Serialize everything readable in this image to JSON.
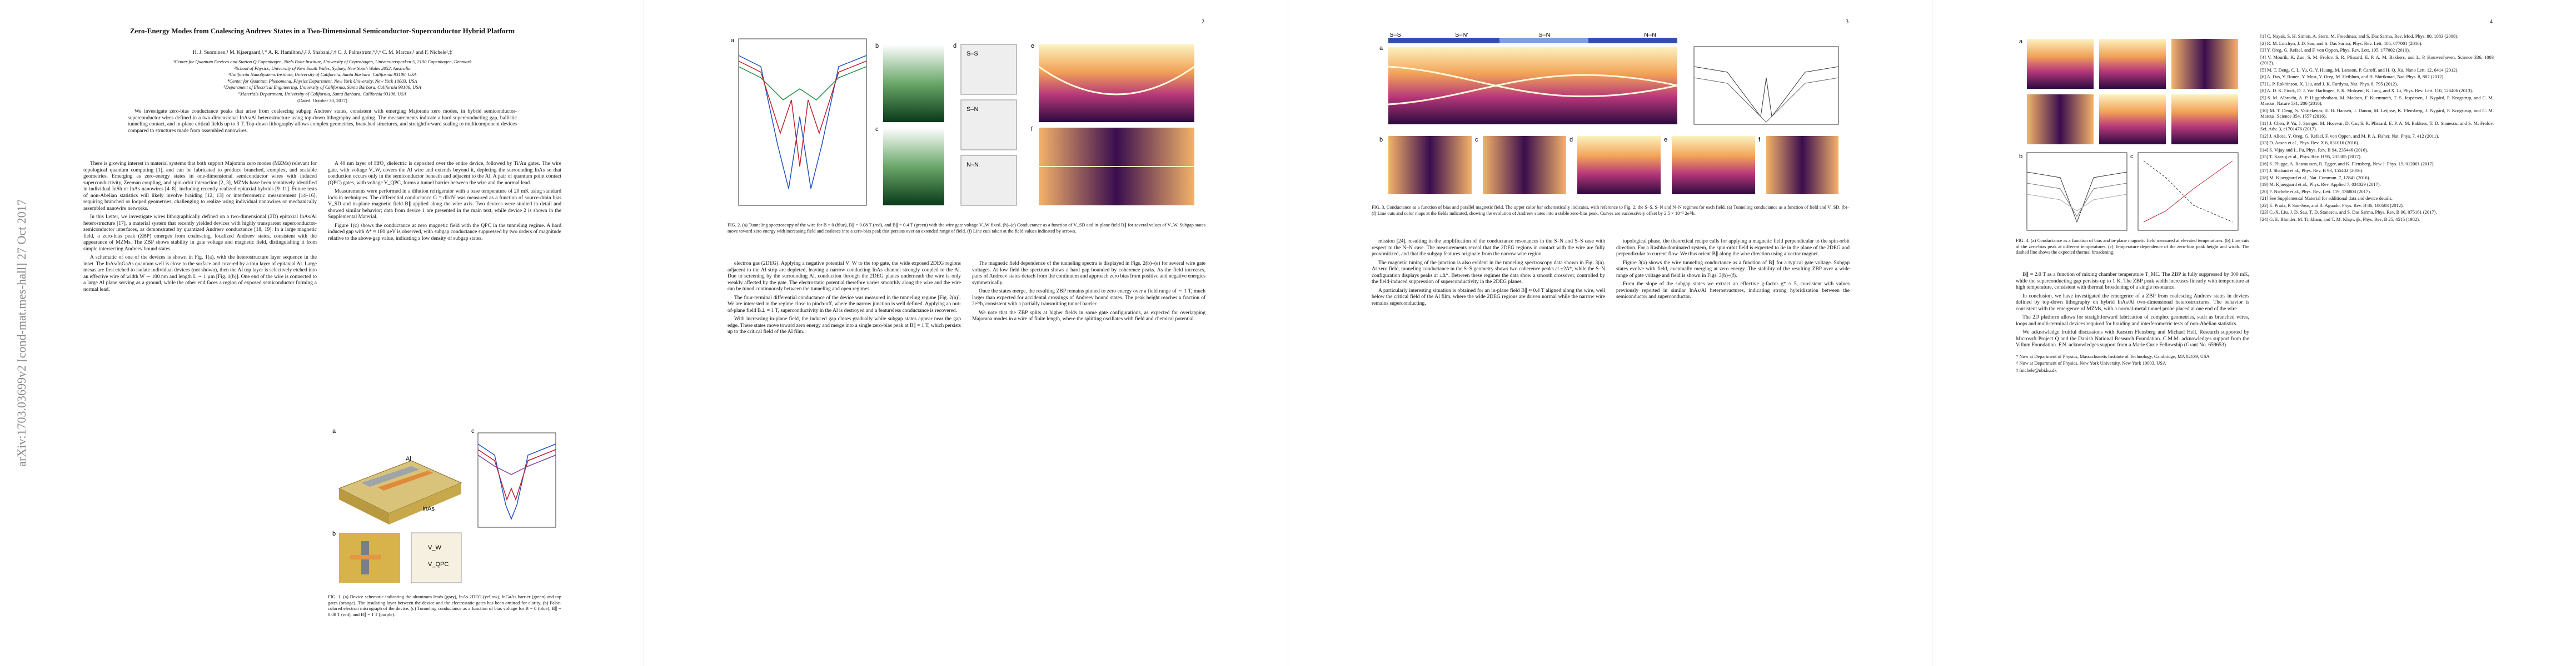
{
  "arxiv_id": "arXiv:1703.03699v2  [cond-mat.mes-hall]  27 Oct 2017",
  "page1": {
    "title": "Zero-Energy Modes from Coalescing Andreev States in a Two-Dimensional Semiconductor-Superconductor Hybrid Platform",
    "authors": "H. J. Suominen,¹ M. Kjaergaard,¹,* A. R. Hamilton,¹,² J. Shabani,³,† C. J. Palmstrøm,⁴,⁵,⁶ C. M. Marcus,¹ and F. Nichele¹,‡",
    "affiliations": [
      "¹Center for Quantum Devices and Station Q Copenhagen, Niels Bohr Institute, University of Copenhagen, Universitetsparken 5, 2100 Copenhagen, Denmark",
      "²School of Physics, University of New South Wales, Sydney, New South Wales 2052, Australia",
      "³California NanoSystems Institute, University of California, Santa Barbara, California 93106, USA",
      "⁴Center for Quantum Phenomena, Physics Department, New York University, New York 10003, USA",
      "⁵Department of Electrical Engineering, University of California, Santa Barbara, California 93106, USA",
      "⁶Materials Department, University of California, Santa Barbara, California 93106, USA"
    ],
    "date": "(Dated: October 30, 2017)",
    "abstract": "We investigate zero-bias conductance peaks that arise from coalescing subgap Andreev states, consistent with emerging Majorana zero modes, in hybrid semiconductor-superconductor wires defined in a two-dimensional InAs/Al heterostructure using top-down lithography and gating. The measurements indicate a hard superconducting gap, ballistic tunneling contact, and in-plane critical fields up to 3 T. Top-down lithography allows complex geometries, branched structures, and straightforward scaling to multicomponent devices compared to structures made from assembled nanowires.",
    "left": [
      "There is growing interest in material systems that both support Majorana zero modes (MZMs) relevant for topological quantum computing [1], and can be fabricated to produce branched, complex, and scalable geometries. Emerging as zero-energy states in one-dimensional semiconductor wires with induced superconductivity, Zeeman coupling, and spin-orbit interaction [2, 3], MZMs have been tentatively identified in individual InSb or InAs nanowires [4–8], including recently realized epitaxial hybrids [9–11]. Future tests of non-Abelian statistics will likely involve braiding [12, 13] or interferometric measurement [14–16], requiring branched or looped geometries, challenging to realize using individual nanowires or mechanically assembled nanowire networks.",
      "In this Letter, we investigate wires lithographically defined on a two-dimensional (2D) epitaxial InAs/Al heterostructure [17], a material system that recently yielded devices with highly transparent superconductor-semiconductor interfaces, as demonstrated by quantized Andreev conductance [18, 19]. In a large magnetic field, a zero-bias peak (ZBP) emerges from coalescing, localized Andreev states, consistent with the appearance of MZMs. The ZBP shows stability in gate voltage and magnetic field, distinguishing it from simple intersecting Andreev bound states.",
      "A schematic of one of the devices is shown in Fig. 1(a), with the heterostructure layer sequence in the inset. The InAs/InGaAs quantum well is close to the surface and covered by a thin layer of epitaxial Al. Large mesas are first etched to isolate individual devices (not shown), then the Al top layer is selectively etched into an effective wire of width W ∼ 100 nm and length L ∼ 1 µm [Fig. 1(b)]. One end of the wire is connected to a large Al plane serving as a ground, while the other end faces a region of exposed semiconductor forming a normal lead."
    ],
    "right": [
      "A 40 nm layer of HfO₂ dielectric is deposited over the entire device, followed by Ti/Au gates. The wire gate, with voltage V_W, covers the Al wire and extends beyond it, depleting the surrounding InAs so that conduction occurs only in the semiconductor beneath and adjacent to the Al. A pair of quantum point contact (QPC) gates, with voltage V_QPC, forms a tunnel barrier between the wire and the normal lead.",
      "Measurements were performed in a dilution refrigerator with a base temperature of 20 mK using standard lock-in techniques. The differential conductance G = dI/dV was measured as a function of source-drain bias V_SD and in-plane magnetic field B∥ applied along the wire axis. Two devices were studied in detail and showed similar behavior; data from device 1 are presented in the main text, while device 2 is shown in the Supplemental Material.",
      "Figure 1(c) shows the conductance at zero magnetic field with the QPC in the tunneling regime. A hard induced gap with Δ* ≈ 180 µeV is observed, with subgap conductance suppressed by two orders of magnitude relative to the above-gap value, indicating a low density of subgap states."
    ],
    "fig1_caption": "FIG. 1. (a) Device schematic indicating the aluminum leads (gray), InAs 2DEG (yellow), InGaAs barrier (green) and top gates (orange). The insulating layer between the device and the electrostatic gates has been omitted for clarity. (b) False-colored electron micrograph of the device. (c) Tunneling conductance as a function of bias voltage for B = 0 (blue), B∥ = 0.08 T (red), and B∥ = 1 T (purple).",
    "fig1_labels": [
      "a",
      "b",
      "c",
      "InAs",
      "Al",
      "V_W",
      "V_QPC"
    ]
  },
  "page2": {
    "number": "2",
    "fig2_caption": "FIG. 2. (a) Tunneling spectroscopy of the wire for B = 0 (blue), B∥ = 0.08 T (red), and B∥ = 0.4 T (green) with the wire gate voltage V_W fixed. (b)–(e) Conductance as a function of V_SD and in-plane field B∥ for several values of V_W. Subgap states move toward zero energy with increasing field and coalesce into a zero-bias peak that persists over an extended range of field. (f) Line cuts taken at the field values indicated by arrows.",
    "fig2_labels": [
      "a",
      "b",
      "c",
      "d",
      "e",
      "f",
      "S–S",
      "S–N",
      "N–N"
    ],
    "left": [
      "electron gas (2DEG). Applying a negative potential V_W to the top gate, the wide exposed 2DEG regions adjacent to the Al strip are depleted, leaving a narrow conducting InAs channel strongly coupled to the Al. Due to screening by the surrounding Al, conduction through the 2DEG planes underneath the wire is only weakly affected by the gate. The electrostatic potential therefore varies smoothly along the wire and the wire can be tuned continuously between the tunneling and open regimes.",
      "The four-terminal differential conductance of the device was measured in the tunneling regime [Fig. 2(a)]. We are interested in the regime close to pinch-off, where the narrow junction is well defined. Applying an out-of-plane field B⊥ = 1 T, superconductivity in the Al is destroyed and a featureless conductance is recovered.",
      "With increasing in-plane field, the induced gap closes gradually while subgap states appear near the gap edge. These states move toward zero energy and merge into a single zero-bias peak at B∥ ≈ 1 T, which persists up to the critical field of the Al film."
    ],
    "right": [
      "The magnetic field dependence of the tunneling spectra is displayed in Figs. 2(b)–(e) for several wire gate voltages. At low field the spectrum shows a hard gap bounded by coherence peaks. As the field increases, pairs of Andreev states detach from the continuum and approach zero bias from positive and negative energies symmetrically.",
      "Once the states merge, the resulting ZBP remains pinned to zero energy over a field range of ∼ 1 T, much larger than expected for accidental crossings of Andreev bound states. The peak height reaches a fraction of 2e²/h, consistent with a partially transmitting tunnel barrier.",
      "We note that the ZBP splits at higher fields in some gate configurations, as expected for overlapping Majorana modes in a wire of finite length, where the splitting oscillates with field and chemical potential."
    ]
  },
  "page3": {
    "number": "3",
    "fig3_caption": "FIG. 3. Conductance as a function of bias and parallel magnetic field. The upper color bar schematically indicates, with reference to Fig. 2, the S–S, S–N and N–N regimes for each field. (a) Tunneling conductance as a function of field and V_SD. (b)–(f) Line cuts and color maps at the fields indicated, showing the evolution of Andreev states into a stable zero-bias peak. Curves are successively offset by 2.5 × 10⁻² 2e²/h.",
    "fig3_labels": [
      "a",
      "b",
      "c",
      "d",
      "e",
      "f",
      "S–S",
      "S–N'",
      "S–N",
      "N–N"
    ],
    "left": [
      "mission [24], resulting in the amplification of the conductance resonances in the S–N and S–S case with respect to the N–N case. The measurements reveal that the 2DEG regions in contact with the wire are fully proximitized, and that the subgap features originate from the narrow wire region.",
      "The magnetic tuning of the junction is also evident in the tunneling spectroscopy data shown in Fig. 3(a). At zero field, tunneling conductance in the S–S geometry shows two coherence peaks at ±2Δ*, while the S–N configuration displays peaks at ±Δ*. Between these regimes the data show a smooth crossover, controlled by the field-induced suppression of superconductivity in the 2DEG planes.",
      "A particularly interesting situation is obtained for an in-plane field B∥ ≈ 0.4 T aligned along the wire, well below the critical field of the Al film, where the wide 2DEG regions are driven normal while the narrow wire remains superconducting."
    ],
    "right": [
      "topological phase, the theoretical recipe calls for applying a magnetic field perpendicular to the spin-orbit direction. For a Rashba-dominated system, the spin-orbit field is expected to lie in the plane of the 2DEG and perpendicular to current flow. We thus orient B∥ along the wire direction using a vector magnet.",
      "Figure 3(a) shows the wire tunneling conductance as a function of B∥ for a typical gate voltage. Subgap states evolve with field, eventually merging at zero energy. The stability of the resulting ZBP over a wide range of gate voltage and field is shown in Figs. 3(b)–(f).",
      "From the slope of the subgap states we extract an effective g-factor g* ≈ 5, consistent with values previously reported in similar InAs/Al heterostructures, indicating strong hybridization between the semiconductor and superconductor."
    ]
  },
  "page4": {
    "number": "4",
    "fig4_caption": "FIG. 4. (a) Conductance as a function of bias and in-plane magnetic field measured at elevated temperatures. (b) Line cuts of the zero-bias peak at different temperatures. (c) Temperature dependence of the zero-bias peak height and width. The dashed line shows the expected thermal broadening.",
    "fig4_labels": [
      "a",
      "b",
      "c"
    ],
    "left": [
      "B∥ = 2.0 T as a function of mixing chamber temperature T_MC. The ZBP is fully suppressed by 300 mK, while the superconducting gap persists up to 1 K. The ZBP peak width increases linearly with temperature at high temperature, consistent with thermal broadening of a single resonance.",
      "In conclusion, we have investigated the emergence of a ZBP from coalescing Andreev states in devices defined by top-down lithography on hybrid InAs/Al two-dimensional heterostructures. The behavior is consistent with the emergence of MZMs, with a normal-metal tunnel probe placed at one end of the wire.",
      "The 2D platform allows for straightforward fabrication of complex geometries, such as branched wires, loops and multi-terminal devices required for braiding and interferometric tests of non-Abelian statistics."
    ],
    "ack": "We acknowledge fruitful discussions with Karsten Flensberg and Michael Hell. Research supported by Microsoft Project Q and the Danish National Research Foundation. C.M.M. acknowledges support from the Villum Foundation. F.N. acknowledges support from a Marie Curie Fellowship (Grant No. 659653).",
    "notes": [
      "* Now at Department of Physics, Massachusetts Institute of Technology, Cambridge, MA 02139, USA",
      "† Now at Department of Physics, New York University, New York 10003, USA",
      "‡ fnichele@nbi.ku.dk"
    ],
    "references": [
      "[1] C. Nayak, S. H. Simon, A. Stern, M. Freedman, and S. Das Sarma, Rev. Mod. Phys. 80, 1083 (2008).",
      "[2] R. M. Lutchyn, J. D. Sau, and S. Das Sarma, Phys. Rev. Lett. 105, 077001 (2010).",
      "[3] Y. Oreg, G. Refael, and F. von Oppen, Phys. Rev. Lett. 105, 177002 (2010).",
      "[4] V. Mourik, K. Zuo, S. M. Frolov, S. R. Plissard, E. P. A. M. Bakkers, and L. P. Kouwenhoven, Science 336, 1003 (2012).",
      "[5] M. T. Deng, C. L. Yu, G. Y. Huang, M. Larsson, P. Caroff, and H. Q. Xu, Nano Lett. 12, 6414 (2012).",
      "[6] A. Das, Y. Ronen, Y. Most, Y. Oreg, M. Heiblum, and H. Shtrikman, Nat. Phys. 8, 887 (2012).",
      "[7] L. P. Rokhinson, X. Liu, and J. K. Furdyna, Nat. Phys. 8, 795 (2012).",
      "[8] A. D. K. Finck, D. J. Van Harlingen, P. K. Mohseni, K. Jung, and X. Li, Phys. Rev. Lett. 110, 126406 (2013).",
      "[9] S. M. Albrecht, A. P. Higginbotham, M. Madsen, F. Kuemmeth, T. S. Jespersen, J. Nygård, P. Krogstrup, and C. M. Marcus, Nature 531, 206 (2016).",
      "[10] M. T. Deng, S. Vaitiekėnas, E. B. Hansen, J. Danon, M. Leijnse, K. Flensberg, J. Nygård, P. Krogstrup, and C. M. Marcus, Science 354, 1557 (2016).",
      "[11] J. Chen, P. Yu, J. Stenger, M. Hocevar, D. Car, S. R. Plissard, E. P. A. M. Bakkers, T. D. Stanescu, and S. M. Frolov, Sci. Adv. 3, e1701476 (2017).",
      "[12] J. Alicea, Y. Oreg, G. Refael, F. von Oppen, and M. P. A. Fisher, Nat. Phys. 7, 412 (2011).",
      "[13] D. Aasen et al., Phys. Rev. X 6, 031016 (2016).",
      "[14] S. Vijay and L. Fu, Phys. Rev. B 94, 235446 (2016).",
      "[15] T. Karzig et al., Phys. Rev. B 95, 235305 (2017).",
      "[16] S. Plugge, A. Rasmussen, R. Egger, and K. Flensberg, New J. Phys. 19, 012001 (2017).",
      "[17] J. Shabani et al., Phys. Rev. B 93, 155402 (2016).",
      "[18] M. Kjaergaard et al., Nat. Commun. 7, 12841 (2016).",
      "[19] M. Kjaergaard et al., Phys. Rev. Applied 7, 034029 (2017).",
      "[20] F. Nichele et al., Phys. Rev. Lett. 119, 136803 (2017).",
      "[21] See Supplemental Material for additional data and device details.",
      "[22] E. Prada, P. San-Jose, and R. Aguado, Phys. Rev. B 86, 180503 (2012).",
      "[23] C.-X. Liu, J. D. Sau, T. D. Stanescu, and S. Das Sarma, Phys. Rev. B 96, 075161 (2017).",
      "[24] G. E. Blonder, M. Tinkham, and T. M. Klapwijk, Phys. Rev. B 25, 4515 (1982)."
    ]
  }
}
